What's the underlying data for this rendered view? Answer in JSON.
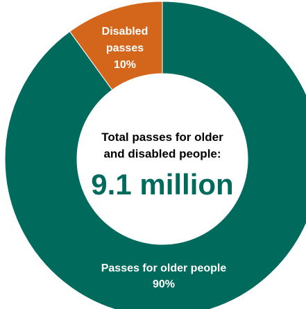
{
  "chart_data": {
    "type": "pie",
    "variant": "donut",
    "categories": [
      "Passes for older people",
      "Disabled passes"
    ],
    "values": [
      90,
      10
    ],
    "unit": "%",
    "colors": [
      "#006b5d",
      "#d4661c"
    ],
    "data_labels": [
      {
        "lines": [
          "Passes for older people",
          "90%"
        ]
      },
      {
        "lines": [
          "Disabled",
          "passes",
          "10%"
        ]
      }
    ],
    "center_label": {
      "lines": [
        "Total passes for older",
        "and disabled people:"
      ],
      "value": "9.1 million",
      "color": "#006b5d"
    }
  }
}
